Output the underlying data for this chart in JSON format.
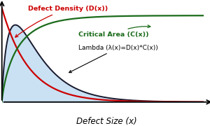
{
  "title": "",
  "xlabel": "Defect Size (x)",
  "xlim": [
    0,
    10
  ],
  "ylim": [
    0,
    1.08
  ],
  "defect_density_label": "Defect Density (D(x))",
  "critical_area_label": "Critical Area (C(x))",
  "lambda_label": "Lambda (λ(x)=D(x)*C(x))",
  "defect_density_color": "#cc0000",
  "critical_area_color": "#1a6b1a",
  "lambda_color": "#1a1a2e",
  "fill_color": "#b8d8f0",
  "fill_alpha": 0.75,
  "background_color": "#ffffff",
  "label_fontsize": 6.8,
  "xlabel_fontsize": 8.5
}
